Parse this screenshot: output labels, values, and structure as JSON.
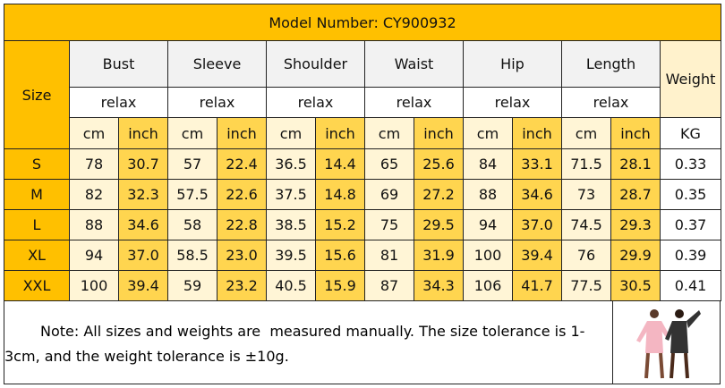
{
  "title": "Model Number: CY900932",
  "size_label": "Size",
  "weight_label": "Weight",
  "weight_unit": "KG",
  "columns": [
    {
      "name": "Bust",
      "fit": "relax",
      "units": [
        "cm",
        "inch"
      ]
    },
    {
      "name": "Sleeve",
      "fit": "relax",
      "units": [
        "cm",
        "inch"
      ]
    },
    {
      "name": "Shoulder",
      "fit": "relax",
      "units": [
        "cm",
        "inch"
      ]
    },
    {
      "name": "Waist",
      "fit": "relax",
      "units": [
        "cm",
        "inch"
      ]
    },
    {
      "name": "Hip",
      "fit": "relax",
      "units": [
        "cm",
        "inch"
      ]
    },
    {
      "name": "Length",
      "fit": "relax",
      "units": [
        "cm",
        "inch"
      ]
    }
  ],
  "rows": [
    {
      "size": "S",
      "values": [
        "78",
        "30.7",
        "57",
        "22.4",
        "36.5",
        "14.4",
        "65",
        "25.6",
        "84",
        "33.1",
        "71.5",
        "28.1"
      ],
      "weight": "0.33"
    },
    {
      "size": "M",
      "values": [
        "82",
        "32.3",
        "57.5",
        "22.6",
        "37.5",
        "14.8",
        "69",
        "27.2",
        "88",
        "34.6",
        "73",
        "28.7"
      ],
      "weight": "0.35"
    },
    {
      "size": "L",
      "values": [
        "88",
        "34.6",
        "58",
        "22.8",
        "38.5",
        "15.2",
        "75",
        "29.5",
        "94",
        "37.0",
        "74.5",
        "29.3"
      ],
      "weight": "0.37"
    },
    {
      "size": "XL",
      "values": [
        "94",
        "37.0",
        "58.5",
        "23.0",
        "39.5",
        "15.6",
        "81",
        "31.9",
        "100",
        "39.4",
        "76",
        "29.9"
      ],
      "weight": "0.39"
    },
    {
      "size": "XXL",
      "values": [
        "100",
        "39.4",
        "59",
        "23.2",
        "40.5",
        "15.9",
        "87",
        "34.3",
        "106",
        "41.7",
        "77.5",
        "30.5"
      ],
      "weight": "0.41"
    }
  ],
  "note": "Note: All sizes and weights are  measured manually. The size tolerance is 1-3cm, and the weight tolerance is ±10g."
}
